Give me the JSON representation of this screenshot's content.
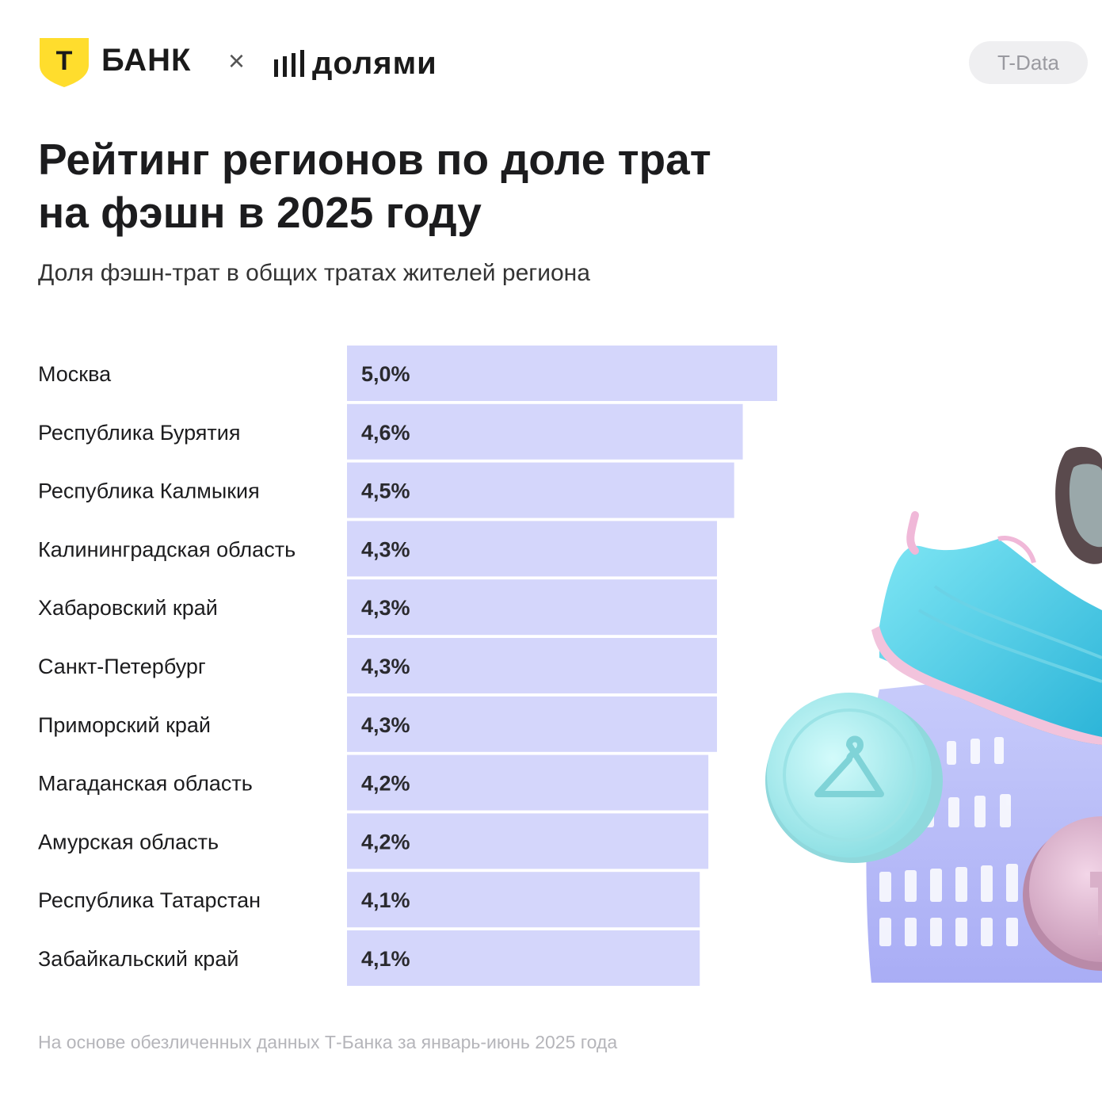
{
  "header": {
    "bank_letter": "Т",
    "bank_name": "БАНК",
    "cross": "×",
    "partner_name": "долями",
    "badge": "T-Data"
  },
  "title": "Рейтинг регионов по доле трат на фэшн в 2025 году",
  "subtitle": "Доля фэшн-трат в общих тратах жителей региона",
  "footer": "На основе обезличенных данных Т-Банка за январь-июнь 2025 года",
  "colors": {
    "bar": "#d4d6fb",
    "brand_yellow": "#ffdd2d",
    "text": "#1c1c1e"
  },
  "icons": [
    "t-bank-shield-icon",
    "dolyami-bars-icon",
    "hanger-coin-icon",
    "sneaker-illustration",
    "basket-illustration",
    "sunglasses-illustration"
  ],
  "chart_data": {
    "type": "bar",
    "orientation": "horizontal",
    "categories": [
      "Москва",
      "Республика Бурятия",
      "Республика Калмыкия",
      "Калининградская область",
      "Хабаровский край",
      "Санкт-Петербург",
      "Приморский край",
      "Магаданская область",
      "Амурская область",
      "Республика Татарстан",
      "Забайкальский край"
    ],
    "values": [
      5.0,
      4.6,
      4.5,
      4.3,
      4.3,
      4.3,
      4.3,
      4.2,
      4.2,
      4.1,
      4.1
    ],
    "labels": [
      "5,0%",
      "4,6%",
      "4,5%",
      "4,3%",
      "4,3%",
      "4,3%",
      "4,3%",
      "4,2%",
      "4,2%",
      "4,1%",
      "4,1%"
    ],
    "xlim": [
      0,
      5.0
    ],
    "grid": false,
    "legend": "none"
  }
}
